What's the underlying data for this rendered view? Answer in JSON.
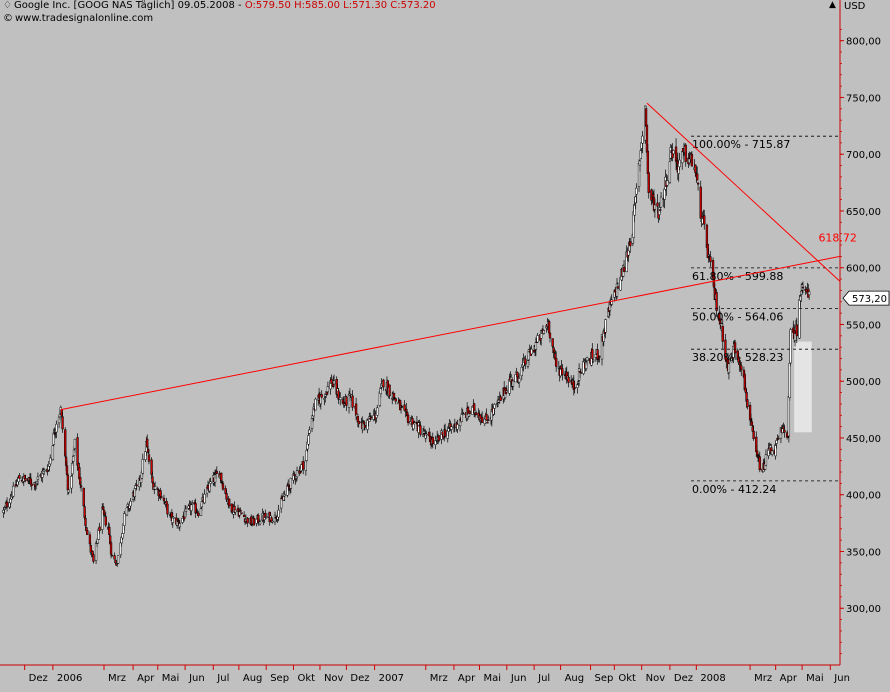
{
  "header": {
    "symbol_glyph": "♢",
    "title": "Google Inc. [GOOG NAS  Täglich] 09.05.2008 - ",
    "ohlc": "O:579.50 H:585.00 L:571.30 C:573.20",
    "source_glyph": "©",
    "source": "www.tradesignalonline.com"
  },
  "y_unit": "USD",
  "scroll_button": "▲",
  "colors": {
    "background": "#c0c0c0",
    "axis": "#cc0000",
    "trendline": "#ff0000",
    "bull_candle": "#ffffff",
    "bear_candle": "#cc0000",
    "fib_line": "#000000",
    "highlight_box": "#e4e4e4"
  },
  "chart_data": {
    "type": "candlestick",
    "title": "Google Inc. [GOOG NAS  Täglich] 09.05.2008",
    "ylabel": "USD",
    "ylim": [
      250,
      820
    ],
    "yticks": [
      "300,00",
      "350,00",
      "400,00",
      "450,00",
      "500,00",
      "550,00",
      "600,00",
      "650,00",
      "700,00",
      "750,00",
      "800,00"
    ],
    "ytick_values": [
      300,
      350,
      400,
      450,
      500,
      550,
      600,
      650,
      700,
      750,
      800
    ],
    "last_price_label": "573,20",
    "last_price": 573.2,
    "xticks": [
      "Dez",
      "2006",
      "Mrz",
      "Apr",
      "Mai",
      "Jun",
      "Jul",
      "Aug",
      "Sep",
      "Okt",
      "Nov",
      "Dez",
      "2007",
      "Mrz",
      "Apr",
      "Mai",
      "Jun",
      "Jul",
      "Aug",
      "Sep",
      "Okt",
      "Nov",
      "Dez",
      "2008",
      "Mrz",
      "Apr",
      "Mai",
      "Jun"
    ],
    "xtick_dates": [
      "2005-12-01",
      "2006-01-02",
      "2006-03-01",
      "2006-04-03",
      "2006-05-01",
      "2006-06-01",
      "2006-07-03",
      "2006-08-01",
      "2006-09-01",
      "2006-10-02",
      "2006-11-01",
      "2006-12-01",
      "2007-01-02",
      "2007-03-01",
      "2007-04-02",
      "2007-05-01",
      "2007-06-01",
      "2007-07-02",
      "2007-08-01",
      "2007-09-04",
      "2007-10-01",
      "2007-11-01",
      "2007-12-03",
      "2008-01-02",
      "2008-03-03",
      "2008-04-01",
      "2008-05-01",
      "2008-06-02"
    ],
    "date_range": [
      "2005-11-03",
      "2008-06-13"
    ],
    "series": [
      {
        "type": "close_path",
        "points": [
          [
            "2005-11-07",
            385
          ],
          [
            "2005-11-25",
            415
          ],
          [
            "2005-12-12",
            410
          ],
          [
            "2005-12-28",
            425
          ],
          [
            "2006-01-06",
            465
          ],
          [
            "2006-01-11",
            475
          ],
          [
            "2006-01-20",
            400
          ],
          [
            "2006-01-27",
            445
          ],
          [
            "2006-02-10",
            365
          ],
          [
            "2006-02-17",
            340
          ],
          [
            "2006-02-27",
            385
          ],
          [
            "2006-03-06",
            370
          ],
          [
            "2006-03-10",
            345
          ],
          [
            "2006-03-16",
            340
          ],
          [
            "2006-03-24",
            380
          ],
          [
            "2006-04-03",
            400
          ],
          [
            "2006-04-10",
            410
          ],
          [
            "2006-04-18",
            445
          ],
          [
            "2006-04-25",
            410
          ],
          [
            "2006-05-05",
            400
          ],
          [
            "2006-05-15",
            380
          ],
          [
            "2006-05-25",
            375
          ],
          [
            "2006-06-08",
            390
          ],
          [
            "2006-06-16",
            385
          ],
          [
            "2006-06-30",
            410
          ],
          [
            "2006-07-10",
            420
          ],
          [
            "2006-07-21",
            390
          ],
          [
            "2006-08-01",
            385
          ],
          [
            "2006-08-15",
            375
          ],
          [
            "2006-08-28",
            380
          ],
          [
            "2006-09-11",
            380
          ],
          [
            "2006-09-25",
            405
          ],
          [
            "2006-10-06",
            420
          ],
          [
            "2006-10-16",
            430
          ],
          [
            "2006-10-20",
            460
          ],
          [
            "2006-10-27",
            480
          ],
          [
            "2006-11-07",
            490
          ],
          [
            "2006-11-14",
            500
          ],
          [
            "2006-11-27",
            480
          ],
          [
            "2006-12-06",
            485
          ],
          [
            "2006-12-18",
            460
          ],
          [
            "2007-01-03",
            470
          ],
          [
            "2007-01-12",
            500
          ],
          [
            "2007-01-25",
            485
          ],
          [
            "2007-02-05",
            470
          ],
          [
            "2007-02-20",
            460
          ],
          [
            "2007-03-02",
            450
          ],
          [
            "2007-03-12",
            445
          ],
          [
            "2007-03-22",
            455
          ],
          [
            "2007-04-02",
            460
          ],
          [
            "2007-04-13",
            470
          ],
          [
            "2007-04-26",
            475
          ],
          [
            "2007-05-08",
            465
          ],
          [
            "2007-05-22",
            480
          ],
          [
            "2007-06-04",
            500
          ],
          [
            "2007-06-14",
            505
          ],
          [
            "2007-06-28",
            525
          ],
          [
            "2007-07-10",
            540
          ],
          [
            "2007-07-18",
            552
          ],
          [
            "2007-07-27",
            512
          ],
          [
            "2007-08-06",
            508
          ],
          [
            "2007-08-16",
            495
          ],
          [
            "2007-08-27",
            515
          ],
          [
            "2007-09-05",
            520
          ],
          [
            "2007-09-14",
            525
          ],
          [
            "2007-09-24",
            560
          ],
          [
            "2007-10-03",
            580
          ],
          [
            "2007-10-12",
            600
          ],
          [
            "2007-10-22",
            635
          ],
          [
            "2007-10-29",
            690
          ],
          [
            "2007-11-05",
            742
          ],
          [
            "2007-11-09",
            665
          ],
          [
            "2007-11-20",
            650
          ],
          [
            "2007-11-27",
            670
          ],
          [
            "2007-12-05",
            705
          ],
          [
            "2007-12-12",
            690
          ],
          [
            "2007-12-20",
            700
          ],
          [
            "2007-12-31",
            690
          ],
          [
            "2008-01-07",
            650
          ],
          [
            "2008-01-17",
            605
          ],
          [
            "2008-01-23",
            575
          ],
          [
            "2008-01-31",
            545
          ],
          [
            "2008-02-07",
            510
          ],
          [
            "2008-02-14",
            530
          ],
          [
            "2008-02-22",
            515
          ],
          [
            "2008-03-03",
            465
          ],
          [
            "2008-03-10",
            435
          ],
          [
            "2008-03-17",
            420
          ],
          [
            "2008-03-24",
            440
          ],
          [
            "2008-03-31",
            440
          ],
          [
            "2008-04-07",
            455
          ],
          [
            "2008-04-15",
            455
          ],
          [
            "2008-04-18",
            540
          ],
          [
            "2008-04-25",
            545
          ],
          [
            "2008-05-01",
            590
          ],
          [
            "2008-05-09",
            573
          ]
        ]
      }
    ],
    "trendlines": [
      {
        "from": [
          "2006-01-11",
          475
        ],
        "to": [
          "2008-06-13",
          610
        ]
      },
      {
        "from": [
          "2007-11-07",
          745
        ],
        "to": [
          "2008-06-13",
          588
        ]
      }
    ],
    "fibonacci": [
      {
        "label": "100.00% - 715.87",
        "value": 715.87
      },
      {
        "label": "61.80% - 599.88",
        "value": 599.88
      },
      {
        "label": "50.00% - 564.06",
        "value": 564.06
      },
      {
        "label": "38.20% - 528.23",
        "value": 528.23
      },
      {
        "label": "0.00% - 412.24",
        "value": 412.24
      }
    ],
    "fib_start_date": "2007-12-27",
    "annotations": [
      {
        "text": "618.72",
        "date": "2008-05-15",
        "value": 618.72
      }
    ],
    "highlight_zone": {
      "from_date": "2008-04-22",
      "to_date": "2008-05-12",
      "low": 455,
      "high": 535
    },
    "grid": false,
    "legend": "none"
  }
}
